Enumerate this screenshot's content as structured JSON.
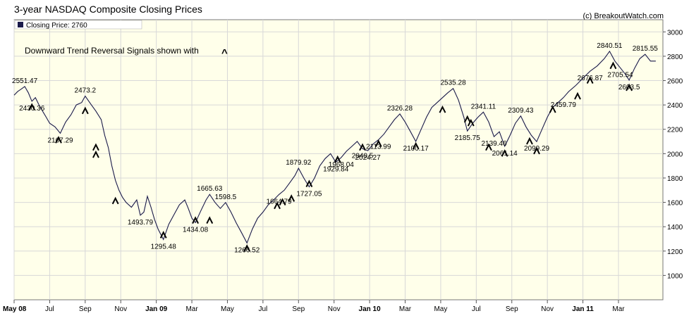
{
  "chart_data": {
    "type": "line",
    "title": "3-year NASDAQ Composite Closing Prices",
    "credit": "(c) BreakoutWatch.com",
    "legend": "Closing Price: 2760",
    "annotation_text": "Downward Trend Reversal Signals shown with",
    "signal_glyph": "^",
    "ylim": [
      800,
      3100
    ],
    "yticks": [
      1000,
      1200,
      1400,
      1600,
      1800,
      2000,
      2200,
      2400,
      2600,
      2800,
      3000
    ],
    "xlim": [
      0,
      36.5
    ],
    "xticks": [
      {
        "label": "May 08",
        "m": 0,
        "bold": true
      },
      {
        "label": "Jul",
        "m": 2,
        "bold": false
      },
      {
        "label": "Sep",
        "m": 4,
        "bold": false
      },
      {
        "label": "Nov",
        "m": 6,
        "bold": false
      },
      {
        "label": "Jan 09",
        "m": 8,
        "bold": true
      },
      {
        "label": "Mar",
        "m": 10,
        "bold": false
      },
      {
        "label": "May",
        "m": 12,
        "bold": false
      },
      {
        "label": "Jul",
        "m": 14,
        "bold": false
      },
      {
        "label": "Sep",
        "m": 16,
        "bold": false
      },
      {
        "label": "Nov",
        "m": 18,
        "bold": false
      },
      {
        "label": "Jan 10",
        "m": 20,
        "bold": true
      },
      {
        "label": "Mar",
        "m": 22,
        "bold": false
      },
      {
        "label": "May",
        "m": 24,
        "bold": false
      },
      {
        "label": "Jul",
        "m": 26,
        "bold": false
      },
      {
        "label": "Sep",
        "m": 28,
        "bold": false
      },
      {
        "label": "Nov",
        "m": 30,
        "bold": false
      },
      {
        "label": "Jan 11",
        "m": 32,
        "bold": true
      },
      {
        "label": "Mar",
        "m": 34,
        "bold": false
      }
    ],
    "series": [
      {
        "color": "#1a1a4a",
        "points": [
          [
            0.0,
            2480
          ],
          [
            0.2,
            2510
          ],
          [
            0.4,
            2530
          ],
          [
            0.6,
            2551.47
          ],
          [
            0.8,
            2500
          ],
          [
            1.0,
            2430.36
          ],
          [
            1.2,
            2460
          ],
          [
            1.4,
            2400
          ],
          [
            1.6,
            2350
          ],
          [
            1.8,
            2300
          ],
          [
            2.0,
            2250
          ],
          [
            2.3,
            2220
          ],
          [
            2.6,
            2167.29
          ],
          [
            2.9,
            2260
          ],
          [
            3.2,
            2320
          ],
          [
            3.5,
            2400
          ],
          [
            3.8,
            2420
          ],
          [
            4.0,
            2473.2
          ],
          [
            4.3,
            2410
          ],
          [
            4.6,
            2350
          ],
          [
            4.9,
            2280
          ],
          [
            5.1,
            2150
          ],
          [
            5.3,
            2050
          ],
          [
            5.5,
            1900
          ],
          [
            5.7,
            1780
          ],
          [
            5.9,
            1700
          ],
          [
            6.1,
            1640
          ],
          [
            6.3,
            1600
          ],
          [
            6.6,
            1560
          ],
          [
            6.9,
            1620
          ],
          [
            7.1,
            1493.79
          ],
          [
            7.3,
            1520
          ],
          [
            7.5,
            1650
          ],
          [
            7.7,
            1560
          ],
          [
            7.9,
            1460
          ],
          [
            8.1,
            1380
          ],
          [
            8.4,
            1295.48
          ],
          [
            8.7,
            1420
          ],
          [
            9.0,
            1500
          ],
          [
            9.3,
            1580
          ],
          [
            9.6,
            1620
          ],
          [
            9.8,
            1550
          ],
          [
            10.0,
            1470
          ],
          [
            10.2,
            1434.08
          ],
          [
            10.5,
            1530
          ],
          [
            10.8,
            1620
          ],
          [
            11.0,
            1665.63
          ],
          [
            11.3,
            1600
          ],
          [
            11.6,
            1550
          ],
          [
            11.9,
            1598.5
          ],
          [
            12.2,
            1520
          ],
          [
            12.5,
            1430
          ],
          [
            12.8,
            1350
          ],
          [
            13.1,
            1266.52
          ],
          [
            13.4,
            1380
          ],
          [
            13.7,
            1470
          ],
          [
            14.0,
            1520
          ],
          [
            14.3,
            1580
          ],
          [
            14.6,
            1620
          ],
          [
            14.9,
            1664.79
          ],
          [
            15.2,
            1700
          ],
          [
            15.5,
            1760
          ],
          [
            15.8,
            1820
          ],
          [
            16.0,
            1879.92
          ],
          [
            16.3,
            1800
          ],
          [
            16.6,
            1727.05
          ],
          [
            16.9,
            1800
          ],
          [
            17.2,
            1900
          ],
          [
            17.5,
            1960
          ],
          [
            17.8,
            2000
          ],
          [
            18.1,
            1929.84
          ],
          [
            18.4,
            1968.04
          ],
          [
            18.7,
            2020
          ],
          [
            19.0,
            2060
          ],
          [
            19.3,
            2100
          ],
          [
            19.6,
            2040.5
          ],
          [
            19.9,
            2024.27
          ],
          [
            20.2,
            2080
          ],
          [
            20.5,
            2113.99
          ],
          [
            20.8,
            2160
          ],
          [
            21.1,
            2220
          ],
          [
            21.4,
            2280
          ],
          [
            21.7,
            2326.28
          ],
          [
            22.0,
            2260
          ],
          [
            22.3,
            2180
          ],
          [
            22.6,
            2100.17
          ],
          [
            22.9,
            2200
          ],
          [
            23.2,
            2300
          ],
          [
            23.5,
            2380
          ],
          [
            23.8,
            2420
          ],
          [
            24.1,
            2460
          ],
          [
            24.4,
            2500
          ],
          [
            24.7,
            2535.28
          ],
          [
            25.0,
            2440
          ],
          [
            25.3,
            2300
          ],
          [
            25.5,
            2185.75
          ],
          [
            25.8,
            2250
          ],
          [
            26.1,
            2300
          ],
          [
            26.4,
            2341.11
          ],
          [
            26.7,
            2260
          ],
          [
            27.0,
            2139.46
          ],
          [
            27.3,
            2180
          ],
          [
            27.6,
            2061.14
          ],
          [
            27.9,
            2150
          ],
          [
            28.2,
            2250
          ],
          [
            28.5,
            2309.43
          ],
          [
            28.8,
            2220
          ],
          [
            29.1,
            2150
          ],
          [
            29.4,
            2099.29
          ],
          [
            29.7,
            2200
          ],
          [
            30.0,
            2300
          ],
          [
            30.3,
            2380
          ],
          [
            30.6,
            2420
          ],
          [
            30.9,
            2459.79
          ],
          [
            31.2,
            2510
          ],
          [
            31.6,
            2560
          ],
          [
            32.0,
            2620
          ],
          [
            32.4,
            2676.87
          ],
          [
            32.8,
            2720
          ],
          [
            33.2,
            2780
          ],
          [
            33.5,
            2840.51
          ],
          [
            33.8,
            2760
          ],
          [
            34.1,
            2705.54
          ],
          [
            34.4,
            2650
          ],
          [
            34.6,
            2603.5
          ],
          [
            34.9,
            2700
          ],
          [
            35.2,
            2780
          ],
          [
            35.5,
            2815.55
          ],
          [
            35.8,
            2760
          ],
          [
            36.1,
            2760
          ]
        ]
      }
    ],
    "value_labels": [
      {
        "text": "2551.47",
        "m": 0.6,
        "v": 2551.47,
        "pos": "above"
      },
      {
        "text": "2430.36",
        "m": 1.0,
        "v": 2430.36,
        "pos": "below"
      },
      {
        "text": "2167.29",
        "m": 2.6,
        "v": 2167.29,
        "pos": "below"
      },
      {
        "text": "2473.2",
        "m": 4.0,
        "v": 2473.2,
        "pos": "above"
      },
      {
        "text": "1493.79",
        "m": 7.1,
        "v": 1493.79,
        "pos": "below"
      },
      {
        "text": "1295.48",
        "m": 8.4,
        "v": 1295.48,
        "pos": "below"
      },
      {
        "text": "1665.63",
        "m": 11.0,
        "v": 1665.63,
        "pos": "above"
      },
      {
        "text": "1434.08",
        "m": 10.2,
        "v": 1434.08,
        "pos": "below"
      },
      {
        "text": "1598.5",
        "m": 11.9,
        "v": 1598.5,
        "pos": "above"
      },
      {
        "text": "1266.52",
        "m": 13.1,
        "v": 1266.52,
        "pos": "below"
      },
      {
        "text": "1664.79",
        "m": 14.9,
        "v": 1664.79,
        "pos": "below"
      },
      {
        "text": "1879.92",
        "m": 16.0,
        "v": 1879.92,
        "pos": "above"
      },
      {
        "text": "1727.05",
        "m": 16.6,
        "v": 1727.05,
        "pos": "below"
      },
      {
        "text": "1929.84",
        "m": 18.1,
        "v": 1929.84,
        "pos": "below"
      },
      {
        "text": "1968.04",
        "m": 18.4,
        "v": 1968.04,
        "pos": "below"
      },
      {
        "text": "2040.5",
        "m": 19.6,
        "v": 2040.5,
        "pos": "below"
      },
      {
        "text": "2024.27",
        "m": 19.9,
        "v": 2024.27,
        "pos": "below"
      },
      {
        "text": "2113.99",
        "m": 20.5,
        "v": 2113.99,
        "pos": "below"
      },
      {
        "text": "2326.28",
        "m": 21.7,
        "v": 2326.28,
        "pos": "above"
      },
      {
        "text": "2100.17",
        "m": 22.6,
        "v": 2100.17,
        "pos": "below"
      },
      {
        "text": "2535.28",
        "m": 24.7,
        "v": 2535.28,
        "pos": "above"
      },
      {
        "text": "2185.75",
        "m": 25.5,
        "v": 2185.75,
        "pos": "below"
      },
      {
        "text": "2341.11",
        "m": 26.4,
        "v": 2341.11,
        "pos": "above"
      },
      {
        "text": "2139.46",
        "m": 27.0,
        "v": 2139.46,
        "pos": "below"
      },
      {
        "text": "2061.14",
        "m": 27.6,
        "v": 2061.14,
        "pos": "below"
      },
      {
        "text": "2309.43",
        "m": 28.5,
        "v": 2309.43,
        "pos": "above"
      },
      {
        "text": "2099.29",
        "m": 29.4,
        "v": 2099.29,
        "pos": "below"
      },
      {
        "text": "2459.79",
        "m": 30.9,
        "v": 2459.79,
        "pos": "below"
      },
      {
        "text": "2676.87",
        "m": 32.4,
        "v": 2676.87,
        "pos": "below"
      },
      {
        "text": "2840.51",
        "m": 33.5,
        "v": 2840.51,
        "pos": "above"
      },
      {
        "text": "2705.54",
        "m": 34.1,
        "v": 2705.54,
        "pos": "below"
      },
      {
        "text": "2603.5",
        "m": 34.6,
        "v": 2603.5,
        "pos": "below"
      },
      {
        "text": "2815.55",
        "m": 35.5,
        "v": 2815.55,
        "pos": "above"
      }
    ],
    "signals": [
      {
        "m": 1.0,
        "v": 2380
      },
      {
        "m": 2.5,
        "v": 2110
      },
      {
        "m": 4.0,
        "v": 2350
      },
      {
        "m": 4.6,
        "v": 2050
      },
      {
        "m": 4.6,
        "v": 1990
      },
      {
        "m": 5.7,
        "v": 1610
      },
      {
        "m": 8.4,
        "v": 1330
      },
      {
        "m": 10.2,
        "v": 1450
      },
      {
        "m": 11.0,
        "v": 1450
      },
      {
        "m": 13.1,
        "v": 1220
      },
      {
        "m": 14.8,
        "v": 1570
      },
      {
        "m": 15.1,
        "v": 1600
      },
      {
        "m": 15.6,
        "v": 1630
      },
      {
        "m": 16.6,
        "v": 1750
      },
      {
        "m": 18.2,
        "v": 1950
      },
      {
        "m": 19.6,
        "v": 2050
      },
      {
        "m": 20.5,
        "v": 2080
      },
      {
        "m": 22.6,
        "v": 2060
      },
      {
        "m": 24.1,
        "v": 2360
      },
      {
        "m": 25.5,
        "v": 2280
      },
      {
        "m": 25.7,
        "v": 2250
      },
      {
        "m": 26.7,
        "v": 2050
      },
      {
        "m": 27.6,
        "v": 2000
      },
      {
        "m": 29.0,
        "v": 2100
      },
      {
        "m": 29.4,
        "v": 2020
      },
      {
        "m": 30.3,
        "v": 2360
      },
      {
        "m": 31.7,
        "v": 2470
      },
      {
        "m": 32.4,
        "v": 2600
      },
      {
        "m": 33.7,
        "v": 2720
      },
      {
        "m": 34.6,
        "v": 2540
      }
    ]
  }
}
